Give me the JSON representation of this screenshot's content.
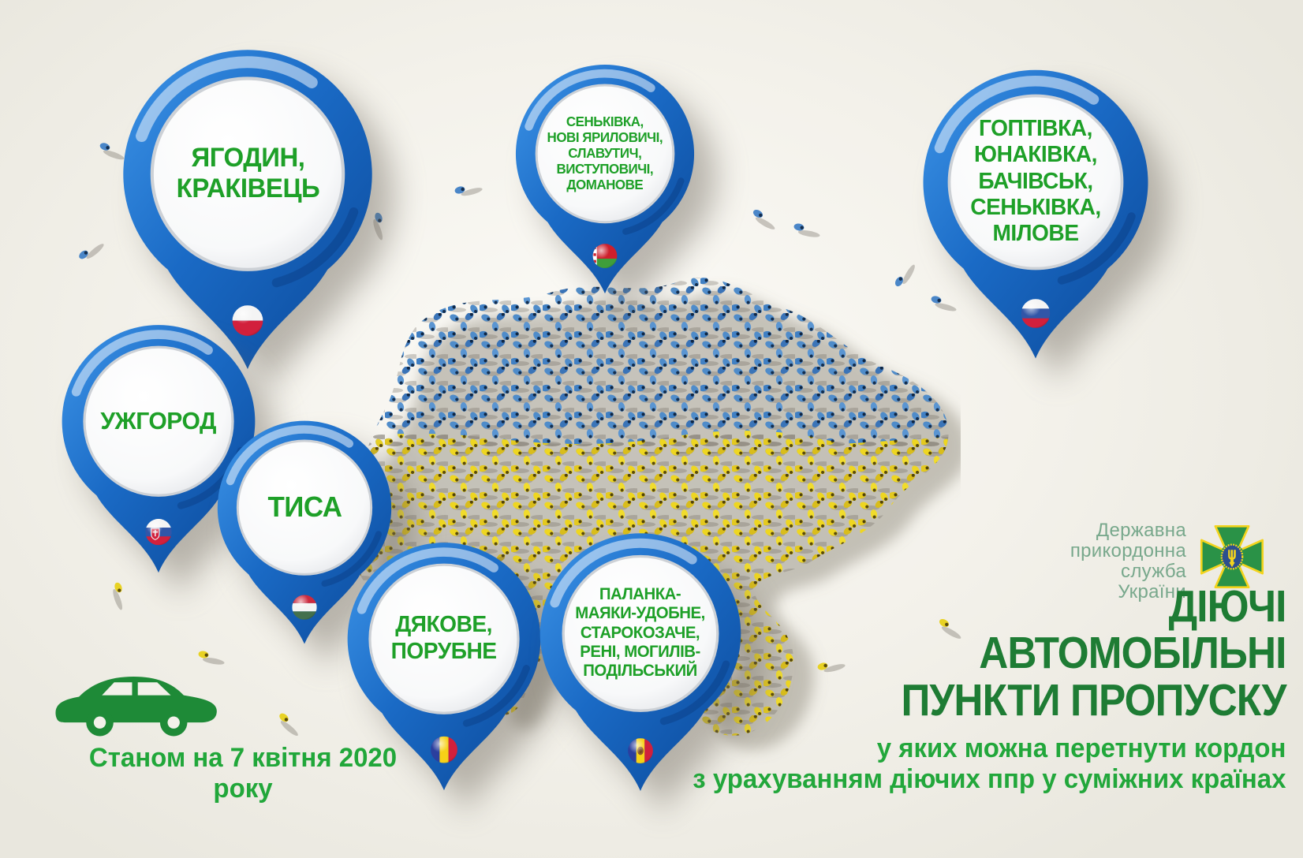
{
  "pins": {
    "yahodyn": {
      "label": "ЯГОДИН,\nКРАКІВЕЦЬ",
      "flag": "poland"
    },
    "senkivka_north": {
      "label": "СЕНЬКІВКА,\nНОВІ ЯРИЛОВИЧІ,\nСЛАВУТИЧ,\nВИСТУПОВИЧІ,\nДОМАНОВЕ",
      "flag": "belarus"
    },
    "hoptivka": {
      "label": "ГОПТІВКА,\nЮНАКІВКА,\nБАЧІВСЬК,\nСЕНЬКІВКА,\nМІЛОВЕ",
      "flag": "russia"
    },
    "uzhhorod": {
      "label": "УЖГОРОД",
      "flag": "slovakia"
    },
    "tysa": {
      "label": "ТИСА",
      "flag": "hungary"
    },
    "diakove": {
      "label": "ДЯКОВЕ,\nПОРУБНЕ",
      "flag": "romania"
    },
    "palanka": {
      "label": "ПАЛАНКА-\nМАЯКИ-УДОБНЕ,\nСТАРОКОЗАЧЕ,\nРЕНІ, МОГИЛІВ-\nПОДІЛЬСЬКИЙ",
      "flag": "moldova"
    }
  },
  "logo": {
    "text": "Державна\nприкордонна\nслужба\nУкраїни"
  },
  "title": {
    "line1": "ДІЮЧІ",
    "line2": "АВТОМОБІЛЬНІ",
    "line3": "ПУНКТИ ПРОПУСКУ",
    "sub1": "у яких можна перетнути кордон",
    "sub2": "з урахуванням діючих ппр у суміжних країнах"
  },
  "footer": {
    "date_note": "Станом на 7 квітня 2020 року"
  },
  "colors": {
    "pin_blue": "#1565bd",
    "pin_text_green": "#1ea028",
    "title_green": "#1e7c34",
    "subtitle_green": "#22a73b",
    "logo_green": "#78a88c",
    "map_blue": "#4a86c8",
    "map_yellow": "#ead51f",
    "background": "#f0ede6"
  }
}
